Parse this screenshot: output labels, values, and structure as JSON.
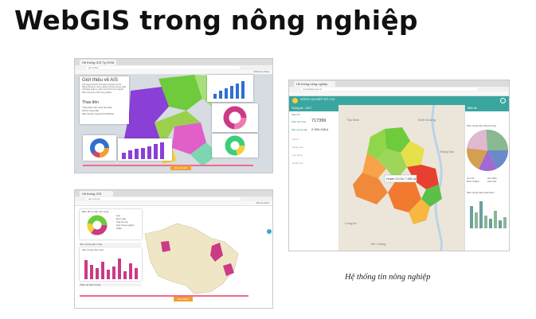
{
  "title": "WebGIS trong nông nghiệp",
  "caption": "Hệ thống tin nông nghiệp",
  "colors": {
    "purple": "#8a3fd6",
    "pink": "#e060c8",
    "green": "#6ecb3c",
    "light_green": "#a6e07a",
    "blue": "#2f6fd0",
    "magenta": "#cc3a86",
    "orange": "#f0a030",
    "teal": "#3aa6a0",
    "map_beige": "#efe6c6",
    "red": "#e84030",
    "yellow": "#f4d03c"
  },
  "screenshot_a": {
    "tab_title": "Hệ thống GIS Tp.HCM",
    "url": "gis.vn/ais",
    "user": "Nhất tsa Ohau",
    "about_title": "Giới thiệu về AIS",
    "about_text": "AIS (Agricultural Information System) là hệ thống thông tin nông nghiệp sử dụng công nghệ GIS giúp quản lý, giám sát và hỗ trợ ra quyết định trong sản xuất nông nghiệp.",
    "stats_title": "Thao tiên",
    "stats_lines": [
      "Tổng diện tích canh tác (ha)",
      "Số hộ nông dân",
      "Sản lượng trung bình (tấn/ha)"
    ],
    "button": "Xem chi tiết"
  },
  "screenshot_b": {
    "tab_title": "Hệ thống GIS",
    "url": "gis.vn/map",
    "user": "Bổ sở chính",
    "panel_top_title": "Biểu đồ cơ cấu cây trồng",
    "legend": [
      "Lúa",
      "Rau màu",
      "Cây ăn trái",
      "Cây công nghiệp",
      "Khác"
    ],
    "chart_title": "Sản lượng theo năm",
    "section2": "Sản lượng giảm tổng",
    "section3": "Phân bố Sản lượng",
    "button": "Xem thêm"
  },
  "screenshot_c": {
    "tab_title": "Hệ thống nông nghiệp",
    "url": "nongnghiep.gis.vn",
    "header": "NÔNG NGHIỆP ĐÔ THỊ",
    "sidebar_title": "Thống kê - 2017",
    "sidebar_sub": "Tiêu chí",
    "field1_label": "Diện tích (ha)",
    "field1_value": "717399",
    "field2_label": "Sản lượng (tấn)",
    "field2_value": "2.094.148,4",
    "side_items": [
      "Giá trị",
      "Năng suất",
      "Lao động",
      "Doanh thu"
    ],
    "map_popup": "Huyện Củ Chi: 7.452 ha",
    "right_title": "Biểu đồ",
    "pie_title": "Sản lượng theo địa phương",
    "pie_legend": [
      "Củ Chi",
      "Hóc Môn",
      "Bình Chánh",
      "Cần Giờ"
    ],
    "bar_title": "Sản lượng theo loại/nhóm",
    "map_labels": [
      "Tây Ninh",
      "Bình Dương",
      "Long An",
      "Đồng Nai",
      "Tiền Giang"
    ]
  }
}
